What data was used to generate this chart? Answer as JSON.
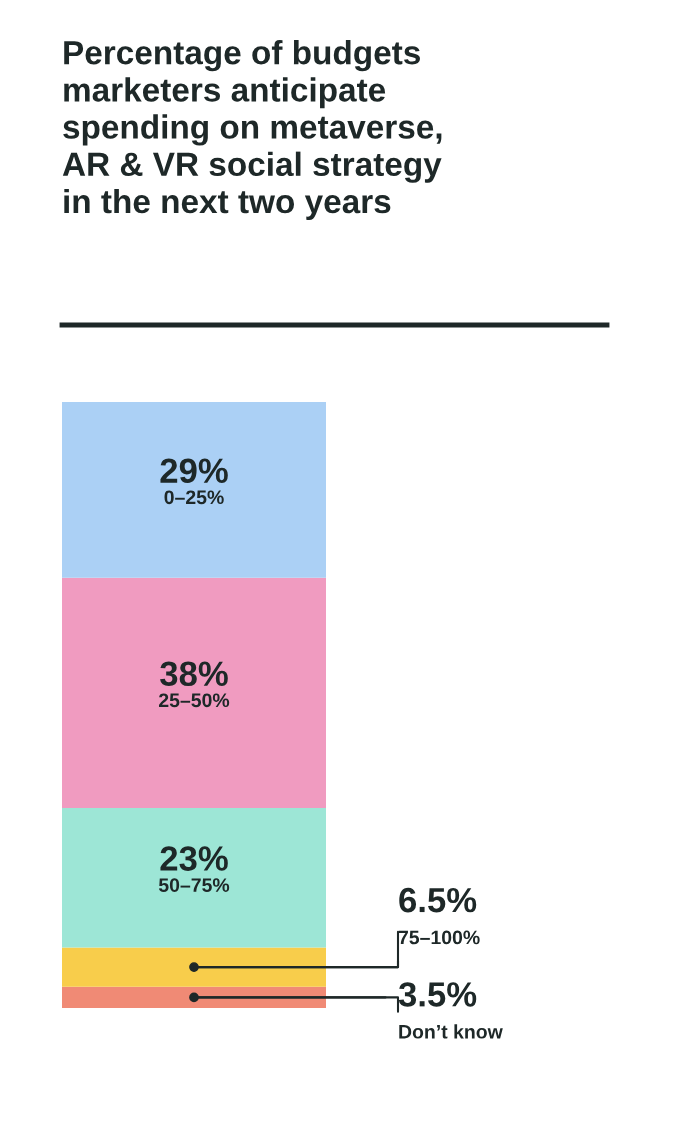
{
  "chart_data": {
    "type": "bar",
    "stacked": true,
    "title": "Percentage of budgets\nmarketers anticipate\nspending on metaverse,\nAR & VR social strategy\nin the next two years",
    "categories": [
      null
    ],
    "series": [
      {
        "name": "Don’t know",
        "color": "#f08a75",
        "values": [
          3.5
        ],
        "value_labels": [
          "3.5%"
        ]
      },
      {
        "name": "75–100%",
        "color": "#f8cd4b",
        "values": [
          6.5
        ],
        "value_labels": [
          "6.5%"
        ]
      },
      {
        "name": "50–75%",
        "color": "#9de6d6",
        "values": [
          23
        ],
        "value_labels": [
          "23%"
        ]
      },
      {
        "name": "25–50%",
        "color": "#f09bc0",
        "values": [
          38
        ],
        "value_labels": [
          "38%"
        ]
      },
      {
        "name": "0–25%",
        "color": "#abd0f5",
        "values": [
          29
        ],
        "value_labels": [
          "29%"
        ]
      }
    ]
  }
}
